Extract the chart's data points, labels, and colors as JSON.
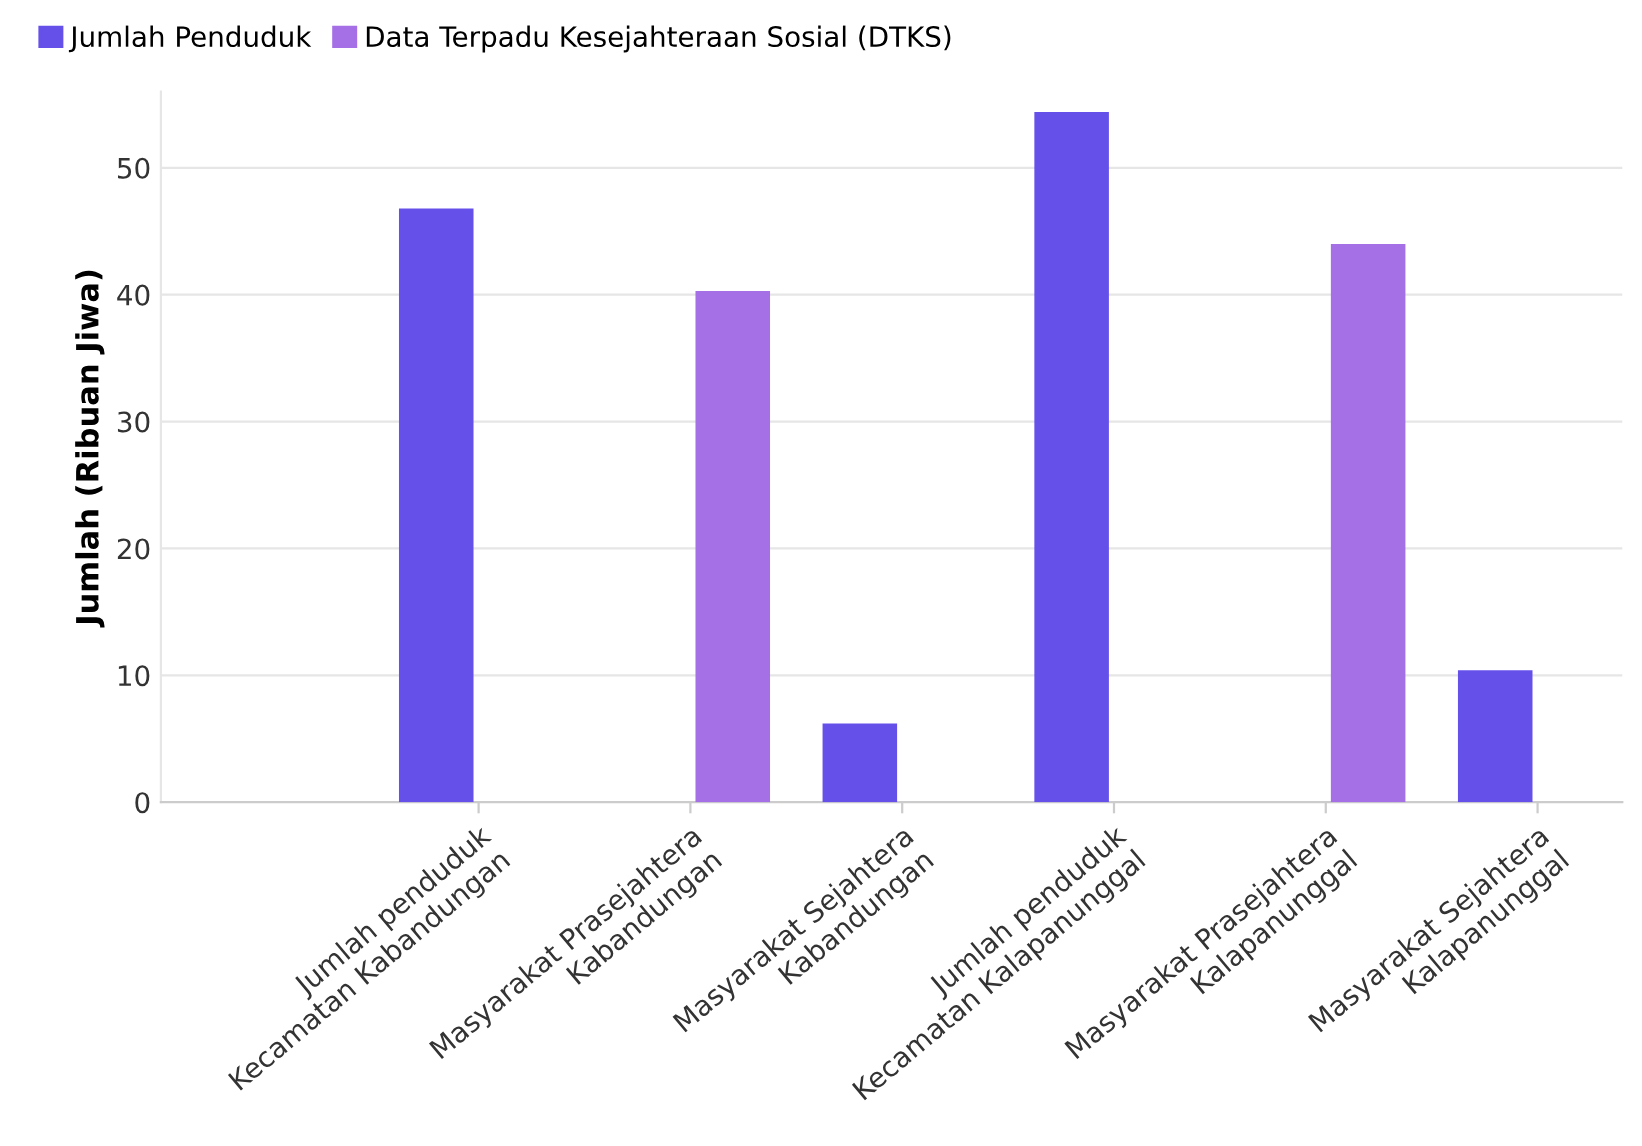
{
  "chart_data": {
    "type": "bar",
    "ylabel": "Jumlah (Ribuan Jiwa)",
    "categories": [
      "Jumlah penduduk\nKecamatan Kabandungan",
      "Masyarakat Prasejahtera\nKabandungan",
      "Masyarakat Sejahtera\nKabandungan",
      "Jumlah penduduk\nKecamatan Kalapanunggal",
      "Masyarakat Prasejahtera\nKalapanunggal",
      "Masyarakat Sejahtera\nKalapanunggal"
    ],
    "series": [
      {
        "name": "Jumlah Penduduk",
        "color": "#6550ea",
        "values": [
          46.8,
          null,
          6.2,
          54.4,
          null,
          10.4
        ]
      },
      {
        "name": "Data Terpadu Kesejahteraan Sosial (DTKS)",
        "color": "#a56fe6",
        "values": [
          null,
          40.3,
          null,
          null,
          44.0,
          null
        ]
      }
    ],
    "ylim": [
      0,
      56
    ],
    "yticks": [
      0,
      10,
      20,
      30,
      40,
      50
    ],
    "grid": "y",
    "legend": "top left"
  }
}
